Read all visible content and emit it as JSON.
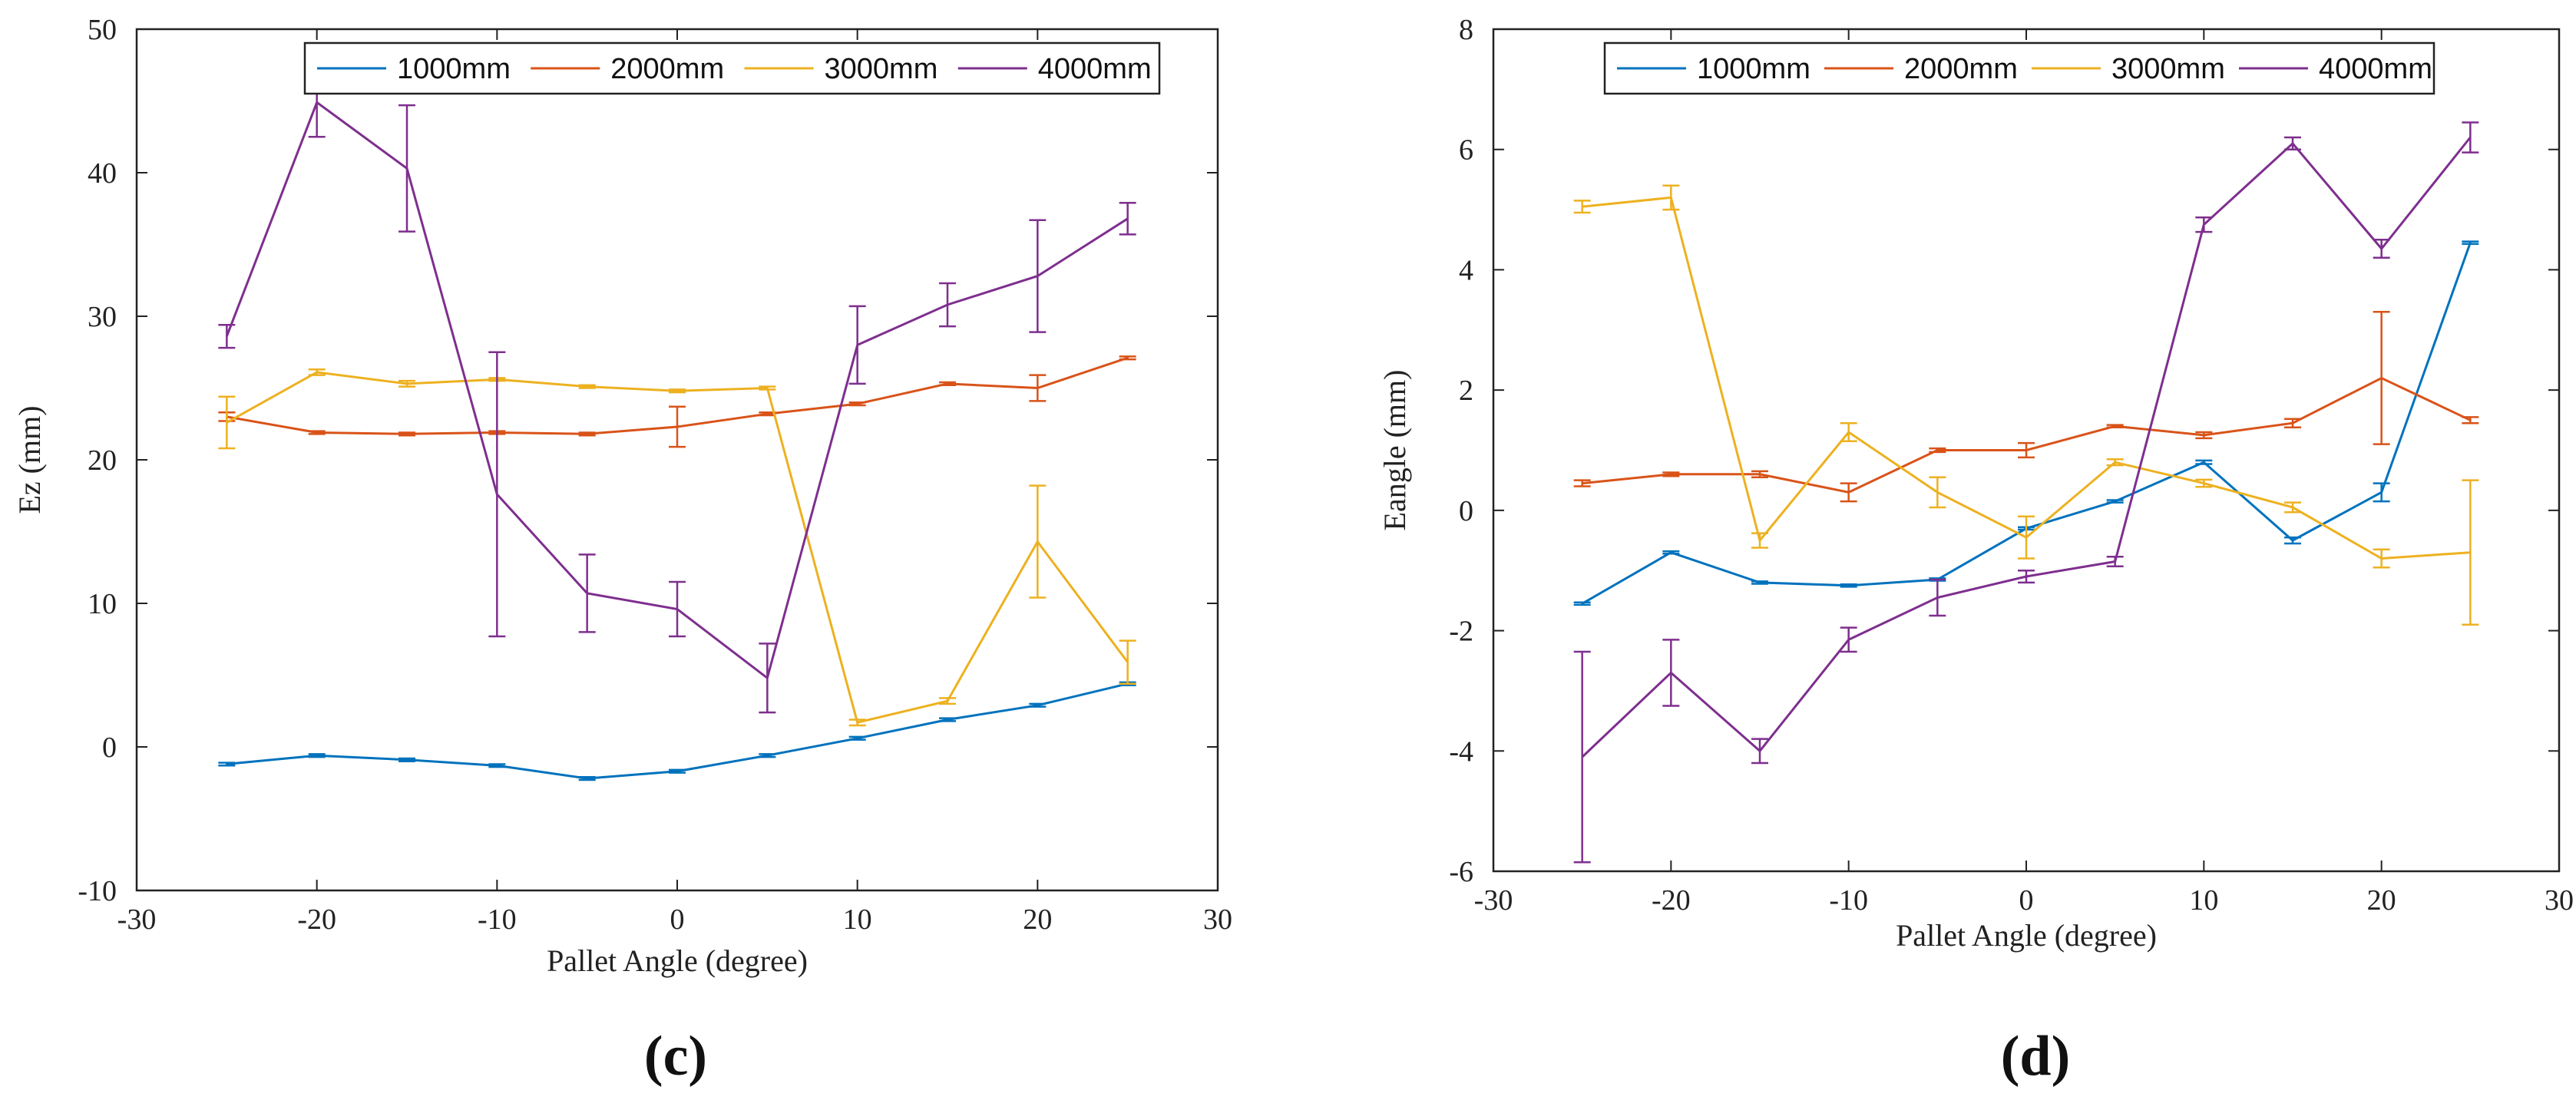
{
  "chart_data": [
    {
      "type": "line",
      "panel_label": "(c)",
      "xlabel": "Pallet Angle (degree)",
      "ylabel": "Ez (mm)",
      "xlim": [
        -30,
        30
      ],
      "ylim": [
        -10,
        50
      ],
      "xticks": [
        -30,
        -20,
        -10,
        0,
        10,
        20,
        30
      ],
      "yticks": [
        -10,
        0,
        10,
        20,
        30,
        40,
        50
      ],
      "xtick_labels": [
        "-30",
        "-20",
        "-10",
        "0",
        "10",
        "20",
        "30"
      ],
      "ytick_labels": [
        "-10",
        "0",
        "10",
        "20",
        "30",
        "40",
        "50"
      ],
      "legend_position": "top",
      "x": [
        -25,
        -20,
        -15,
        -10,
        -5,
        0,
        5,
        10,
        15,
        20,
        25
      ],
      "series": [
        {
          "name": "1000mm",
          "color": "#0072BD",
          "values": [
            -1.2,
            -0.6,
            -0.9,
            -1.3,
            -2.2,
            -1.7,
            -0.6,
            0.6,
            1.9,
            2.9,
            4.4
          ],
          "errors": [
            0.1,
            0.1,
            0.1,
            0.1,
            0.1,
            0.1,
            0.1,
            0.1,
            0.1,
            0.1,
            0.1
          ]
        },
        {
          "name": "2000mm",
          "color": "#D95319",
          "values": [
            23.0,
            21.9,
            21.8,
            21.9,
            21.8,
            22.3,
            23.2,
            23.9,
            25.3,
            25.0,
            27.1
          ],
          "errors": [
            0.3,
            0.1,
            0.1,
            0.1,
            0.1,
            1.4,
            0.1,
            0.1,
            0.1,
            0.9,
            0.1
          ]
        },
        {
          "name": "3000mm",
          "color": "#EDB120",
          "values": [
            22.6,
            26.1,
            25.3,
            25.6,
            25.1,
            24.8,
            25.0,
            1.7,
            3.2,
            14.3,
            5.9
          ],
          "errors": [
            1.8,
            0.2,
            0.2,
            0.1,
            0.1,
            0.1,
            0.1,
            0.2,
            0.2,
            3.9,
            1.5
          ]
        },
        {
          "name": "4000mm",
          "color": "#7E2F8E",
          "values": [
            28.6,
            44.9,
            40.3,
            17.6,
            10.7,
            9.6,
            4.8,
            28.0,
            30.8,
            32.8,
            36.8
          ],
          "errors": [
            0.8,
            2.4,
            4.4,
            9.9,
            2.7,
            1.9,
            2.4,
            2.7,
            1.5,
            3.9,
            1.1
          ]
        }
      ]
    },
    {
      "type": "line",
      "panel_label": "(d)",
      "xlabel": "Pallet Angle (degree)",
      "ylabel": "Eangle (mm)",
      "xlim": [
        -30,
        30
      ],
      "ylim": [
        -6,
        8
      ],
      "xticks": [
        -30,
        -20,
        -10,
        0,
        10,
        20,
        30
      ],
      "yticks": [
        -6,
        -4,
        -2,
        0,
        2,
        4,
        6,
        8
      ],
      "xtick_labels": [
        "-30",
        "-20",
        "-10",
        "0",
        "10",
        "20",
        "30"
      ],
      "ytick_labels": [
        "-6",
        "-4",
        "-2",
        "0",
        "2",
        "4",
        "6",
        "8"
      ],
      "legend_position": "top",
      "x": [
        -25,
        -20,
        -15,
        -10,
        -5,
        0,
        5,
        10,
        15,
        20,
        25
      ],
      "series": [
        {
          "name": "1000mm",
          "color": "#0072BD",
          "values": [
            -1.55,
            -0.7,
            -1.2,
            -1.25,
            -1.15,
            -0.3,
            0.15,
            0.8,
            -0.5,
            0.3,
            4.45
          ],
          "errors": [
            0.02,
            0.02,
            0.02,
            0.02,
            0.02,
            0.02,
            0.02,
            0.03,
            0.05,
            0.15,
            0.02
          ]
        },
        {
          "name": "2000mm",
          "color": "#D95319",
          "values": [
            0.45,
            0.6,
            0.6,
            0.3,
            1.0,
            1.0,
            1.4,
            1.25,
            1.45,
            2.2,
            1.5
          ],
          "errors": [
            0.05,
            0.03,
            0.05,
            0.15,
            0.03,
            0.12,
            0.02,
            0.05,
            0.07,
            1.1,
            0.05
          ]
        },
        {
          "name": "3000mm",
          "color": "#EDB120",
          "values": [
            5.05,
            5.2,
            -0.5,
            1.3,
            0.3,
            -0.45,
            0.8,
            0.45,
            0.05,
            -0.8,
            -0.7
          ],
          "errors": [
            0.1,
            0.2,
            0.12,
            0.15,
            0.25,
            0.35,
            0.05,
            0.06,
            0.08,
            0.15,
            1.2
          ]
        },
        {
          "name": "4000mm",
          "color": "#7E2F8E",
          "values": [
            -4.1,
            -2.7,
            -4.0,
            -2.15,
            -1.45,
            -1.1,
            -0.85,
            4.75,
            6.1,
            4.35,
            6.2
          ],
          "errors": [
            1.75,
            0.55,
            0.2,
            0.2,
            0.3,
            0.1,
            0.08,
            0.12,
            0.1,
            0.15,
            0.25
          ]
        }
      ]
    }
  ]
}
